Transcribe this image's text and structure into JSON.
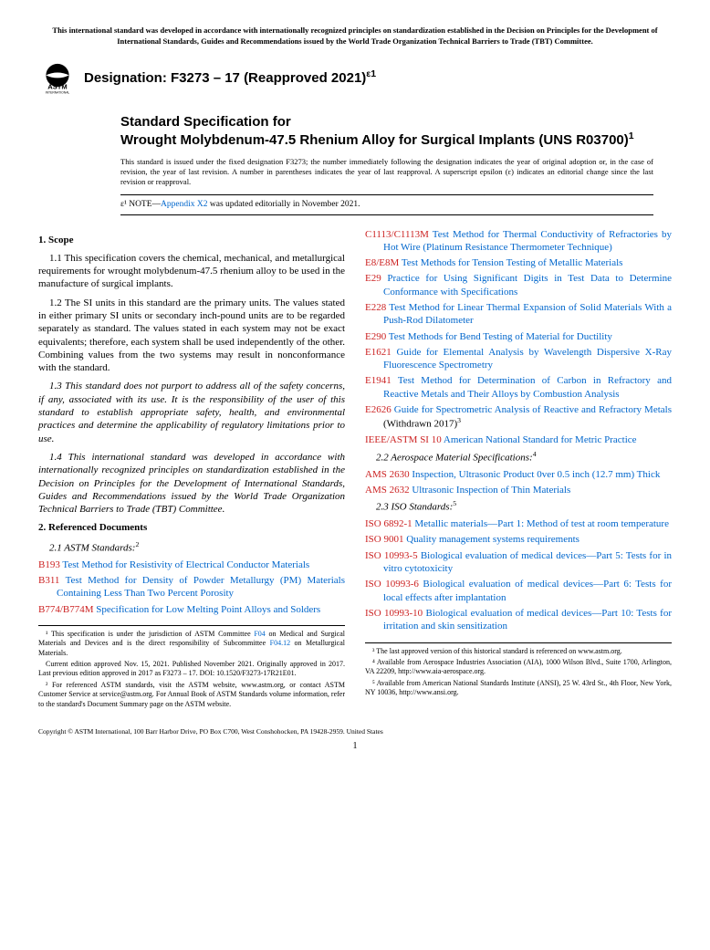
{
  "top_note": "This international standard was developed in accordance with internationally recognized principles on standardization established in the Decision on Principles for the Development of International Standards, Guides and Recommendations issued by the World Trade Organization Technical Barriers to Trade (TBT) Committee.",
  "logo": {
    "text": "ASTM",
    "sub": "INTERNATIONAL"
  },
  "designation": "Designation: F3273 – 17 (Reapproved 2021)",
  "designation_sup": "ε1",
  "title_prefix": "Standard Specification for",
  "title_main": "Wrought Molybdenum-47.5 Rhenium Alloy for Surgical Implants (UNS R03700)",
  "title_sup": "1",
  "issuance": "This standard is issued under the fixed designation F3273; the number immediately following the designation indicates the year of original adoption or, in the case of revision, the year of last revision. A number in parentheses indicates the year of last reapproval. A superscript epsilon (ε) indicates an editorial change since the last revision or reapproval.",
  "epsilon": {
    "label": "ε¹ NOTE—",
    "link": "Appendix X2",
    "rest": " was updated editorially in November 2021."
  },
  "s1": {
    "head": "1. Scope",
    "p1": "1.1 This specification covers the chemical, mechanical, and metallurgical requirements for wrought molybdenum-47.5 rhenium alloy to be used in the manufacture of surgical implants.",
    "p2": "1.2 The SI units in this standard are the primary units. The values stated in either primary SI units or secondary inch-pound units are to be regarded separately as standard. The values stated in each system may not be exact equivalents; therefore, each system shall be used independently of the other. Combining values from the two systems may result in nonconformance with the standard.",
    "p3": "1.3 This standard does not purport to address all of the safety concerns, if any, associated with its use. It is the responsibility of the user of this standard to establish appropriate safety, health, and environmental practices and determine the applicability of regulatory limitations prior to use.",
    "p4": "1.4 This international standard was developed in accordance with internationally recognized principles on standardization established in the Decision on Principles for the Development of International Standards, Guides and Recommendations issued by the World Trade Organization Technical Barriers to Trade (TBT) Committee."
  },
  "s2": {
    "head": "2. Referenced Documents",
    "sub21": "2.1 ASTM Standards:",
    "sub21_sup": "2",
    "refs_col1": [
      {
        "code": "B193",
        "title": "Test Method for Resistivity of Electrical Conductor Materials"
      },
      {
        "code": "B311",
        "title": "Test Method for Density of Powder Metallurgy (PM) Materials Containing Less Than Two Percent Porosity"
      },
      {
        "code": "B774/B774M",
        "title": "Specification for Low Melting Point Alloys and Solders"
      }
    ],
    "refs_col2": [
      {
        "code": "C1113/C1113M",
        "title": "Test Method for Thermal Conductivity of Refractories by Hot Wire (Platinum Resistance Thermometer Technique)"
      },
      {
        "code": "E8/E8M",
        "title": "Test Methods for Tension Testing of Metallic Materials"
      },
      {
        "code": "E29",
        "title": "Practice for Using Significant Digits in Test Data to Determine Conformance with Specifications"
      },
      {
        "code": "E228",
        "title": "Test Method for Linear Thermal Expansion of Solid Materials With a Push-Rod Dilatometer"
      },
      {
        "code": "E290",
        "title": "Test Methods for Bend Testing of Material for Ductility"
      },
      {
        "code": "E1621",
        "title": "Guide for Elemental Analysis by Wavelength Dispersive X-Ray Fluorescence Spectrometry"
      },
      {
        "code": "E1941",
        "title": "Test Method for Determination of Carbon in Refractory and Reactive Metals and Their Alloys by Combustion Analysis"
      },
      {
        "code": "E2626",
        "title": "Guide for Spectrometric Analysis of Reactive and Refractory Metals",
        "suffix": " (Withdrawn 2017)",
        "sup": "3"
      },
      {
        "code": "IEEE/ASTM SI 10",
        "title": "American National Standard for Metric Practice"
      }
    ],
    "sub22": "2.2 Aerospace Material Specifications:",
    "sub22_sup": "4",
    "ams": [
      {
        "code": "AMS 2630",
        "title": "Inspection, Ultrasonic Product 0ver 0.5 inch (12.7 mm) Thick"
      },
      {
        "code": "AMS 2632",
        "title": "Ultrasonic Inspection of Thin Materials"
      }
    ],
    "sub23": "2.3 ISO Standards:",
    "sub23_sup": "5",
    "iso": [
      {
        "code": "ISO 6892-1",
        "title": "Metallic materials—Part 1: Method of test at room temperature"
      },
      {
        "code": "ISO 9001",
        "title": "Quality management systems requirements"
      },
      {
        "code": "ISO 10993-5",
        "title": "Biological evaluation of medical devices—Part 5: Tests for in vitro cytotoxicity"
      },
      {
        "code": "ISO 10993-6",
        "title": "Biological evaluation of medical devices—Part 6: Tests for local effects after implantation"
      },
      {
        "code": "ISO 10993-10",
        "title": "Biological evaluation of medical devices—Part 10: Tests for irritation and skin sensitization"
      }
    ]
  },
  "fn1": {
    "a": "¹ This specification is under the jurisdiction of ASTM Committee ",
    "link1": "F04",
    "b": " on Medical and Surgical Materials and Devices and is the direct responsibility of Subcommittee ",
    "link2": "F04.12",
    "c": " on Metallurgical Materials.",
    "d": "Current edition approved Nov. 15, 2021. Published November 2021. Originally approved in 2017. Last previous edition approved in 2017 as F3273 – 17. DOI: 10.1520/F3273-17R21E01.",
    "e": "² For referenced ASTM standards, visit the ASTM website, www.astm.org, or contact ASTM Customer Service at service@astm.org. For Annual Book of ASTM Standards volume information, refer to the standard's Document Summary page on the ASTM website."
  },
  "fn2": {
    "a": "³ The last approved version of this historical standard is referenced on www.astm.org.",
    "b": "⁴ Available from Aerospace Industries Association (AIA), 1000 Wilson Blvd., Suite 1700, Arlington, VA 22209, http://www.aia-aerospace.org.",
    "c": "⁵ Available from American National Standards Institute (ANSI), 25 W. 43rd St., 4th Floor, New York, NY 10036, http://www.ansi.org."
  },
  "copyright": "Copyright © ASTM International, 100 Barr Harbor Drive, PO Box C700, West Conshohocken, PA 19428-2959. United States",
  "pagenum": "1",
  "colors": {
    "link": "#0066cc",
    "code": "#cc2222"
  }
}
